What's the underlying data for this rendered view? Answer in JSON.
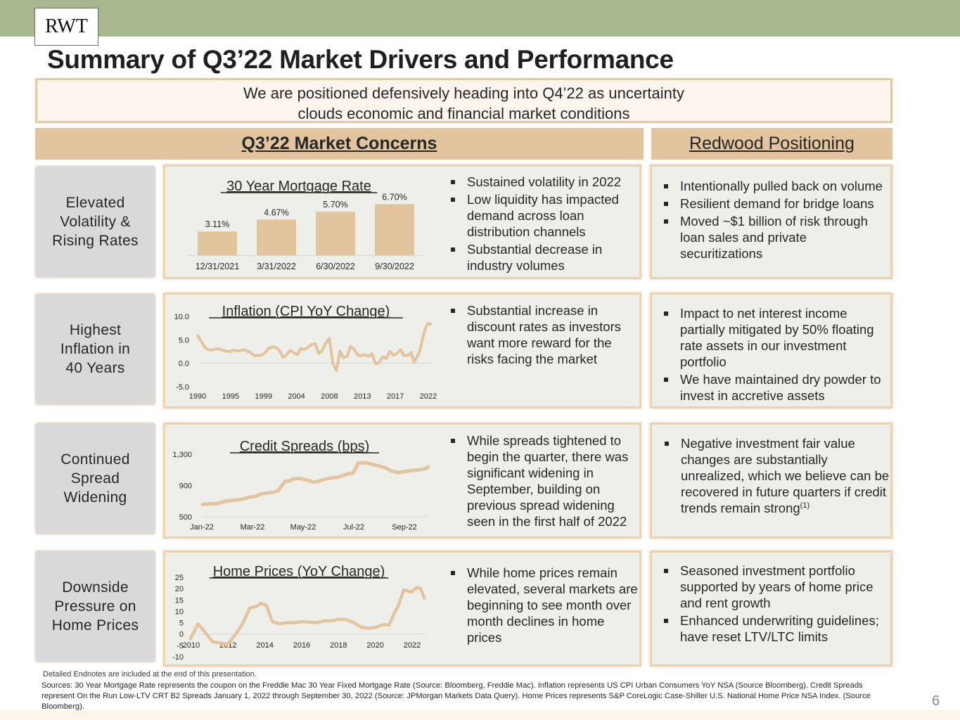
{
  "header": {
    "logo": "RWT",
    "title": "Summary of Q3’22 Market Drivers and Performance",
    "banner_line1": "We are positioned defensively heading into Q4’22 as uncertainty",
    "banner_line2": "clouds economic and financial market conditions",
    "concerns_heading": "Q3’22 Market Concerns",
    "positioning_heading": "Redwood Positioning"
  },
  "colors": {
    "top_bar": "#a9b78f",
    "header_fill": "#e2c49e",
    "panel_border": "#ecd2b0",
    "panel_fill": "#efefea",
    "label_fill": "#d9d9d9",
    "series": "#e2c49e"
  },
  "rows": [
    {
      "label_lines": [
        "Elevated",
        "Volatility &",
        "Rising Rates"
      ],
      "concerns": [
        "Sustained volatility in 2022",
        "Low liquidity has impacted demand across loan distribution channels",
        "Substantial decrease in industry volumes"
      ],
      "positioning": [
        "Intentionally pulled back on volume",
        "Resilient demand for bridge loans",
        "Moved ~$1 billion of risk through loan sales and private securitizations"
      ]
    },
    {
      "label_lines": [
        "Highest",
        "Inflation in",
        "40 Years"
      ],
      "concerns": [
        "Substantial increase in discount rates as investors want more reward for the risks facing the market"
      ],
      "positioning": [
        "Impact to net interest income partially mitigated by 50% floating rate assets in our investment portfolio",
        "We have maintained dry powder to invest in accretive assets"
      ]
    },
    {
      "label_lines": [
        "Continued",
        "Spread",
        "Widening"
      ],
      "concerns": [
        "While spreads tightened to begin the quarter, there was significant widening in September, building on previous spread widening seen in the first half of 2022"
      ],
      "positioning": [
        "Negative investment fair value changes are substantially unrealized, which we believe can be recovered in future quarters if credit trends remain strong"
      ],
      "positioning_footnote": "(1)"
    },
    {
      "label_lines": [
        "Downside",
        "Pressure on",
        "Home Prices"
      ],
      "concerns": [
        "While home prices remain elevated, several markets are beginning to see month over month declines in home prices"
      ],
      "positioning": [
        "Seasoned investment portfolio supported by years of home price and rent growth",
        "Enhanced underwriting guidelines; have reset LTV/LTC limits"
      ]
    }
  ],
  "chart_data": [
    {
      "type": "bar",
      "title": "30 Year Mortgage Rate",
      "categories": [
        "12/31/2021",
        "3/31/2022",
        "6/30/2022",
        "9/30/2022"
      ],
      "values": [
        3.11,
        4.67,
        5.7,
        6.7
      ],
      "value_labels": [
        "3.11%",
        "4.67%",
        "5.70%",
        "6.70%"
      ],
      "ylim": [
        0,
        7
      ],
      "grid": false,
      "legend": "none"
    },
    {
      "type": "line",
      "title": "Inflation (CPI YoY Change)",
      "xlabel": "",
      "ylabel": "",
      "x_tick_labels": [
        "1990",
        "1995",
        "1999",
        "2004",
        "2008",
        "2013",
        "2017",
        "2022"
      ],
      "y_tick_labels": [
        "10.0",
        "5.0",
        "0.0",
        "-5.0"
      ],
      "xlim": [
        1990,
        2022.8
      ],
      "ylim": [
        -5,
        10
      ],
      "series": [
        {
          "name": "CPI YoY",
          "x": [
            1990.0,
            1990.5,
            1991.0,
            1991.5,
            1992.0,
            1992.5,
            1993.0,
            1993.5,
            1994.0,
            1994.5,
            1995.0,
            1995.5,
            1996.0,
            1996.5,
            1997.0,
            1997.5,
            1998.0,
            1998.5,
            1999.0,
            1999.5,
            2000.0,
            2000.5,
            2001.0,
            2001.5,
            2002.0,
            2002.5,
            2003.0,
            2003.5,
            2004.0,
            2004.5,
            2005.0,
            2005.5,
            2006.0,
            2006.5,
            2007.0,
            2007.5,
            2008.0,
            2008.5,
            2009.0,
            2009.5,
            2010.0,
            2010.5,
            2011.0,
            2011.5,
            2012.0,
            2012.5,
            2013.0,
            2013.5,
            2014.0,
            2014.5,
            2015.0,
            2015.5,
            2016.0,
            2016.5,
            2017.0,
            2017.5,
            2018.0,
            2018.5,
            2019.0,
            2019.5,
            2020.0,
            2020.4,
            2020.8,
            2021.2,
            2021.6,
            2022.0,
            2022.4,
            2022.7
          ],
          "y": [
            5.9,
            4.7,
            3.4,
            2.9,
            2.8,
            3.0,
            3.1,
            2.8,
            2.6,
            2.5,
            2.8,
            2.7,
            2.7,
            2.9,
            2.6,
            2.2,
            1.6,
            1.7,
            1.7,
            2.3,
            3.2,
            3.5,
            3.4,
            2.7,
            1.3,
            1.8,
            2.8,
            2.2,
            1.9,
            3.1,
            3.0,
            3.4,
            4.0,
            4.2,
            2.1,
            2.7,
            4.3,
            5.3,
            0.0,
            -1.6,
            2.6,
            1.2,
            1.5,
            3.6,
            2.9,
            1.7,
            1.6,
            1.8,
            1.5,
            2.0,
            -0.1,
            0.1,
            1.4,
            1.0,
            2.5,
            1.7,
            2.1,
            2.9,
            1.6,
            1.7,
            2.3,
            0.2,
            1.3,
            2.6,
            5.3,
            7.5,
            8.6,
            8.3
          ]
        }
      ],
      "grid": false,
      "legend": "none"
    },
    {
      "type": "line",
      "title": "Credit Spreads (bps)",
      "x_tick_labels": [
        "Jan-22",
        "Mar-22",
        "May-22",
        "Jul-22",
        "Sep-22"
      ],
      "y_tick_labels": [
        "1,300",
        "900",
        "500"
      ],
      "xlim": [
        0,
        9
      ],
      "ylim": [
        500,
        1300
      ],
      "series": [
        {
          "name": "On the Run Low-LTV CRT B2 Spreads",
          "x": [
            0.0,
            0.3,
            0.6,
            0.8,
            1.0,
            1.2,
            1.5,
            1.7,
            1.9,
            2.1,
            2.3,
            2.5,
            2.8,
            3.0,
            3.3,
            3.5,
            3.6,
            3.9,
            4.1,
            4.4,
            4.6,
            4.8,
            5.0,
            5.2,
            5.4,
            5.6,
            5.8,
            6.0,
            6.2,
            6.4,
            6.6,
            6.9,
            7.1,
            7.3,
            7.5,
            7.8,
            8.0,
            8.3,
            8.6,
            8.9,
            9.0
          ],
          "y": [
            660,
            665,
            670,
            690,
            705,
            710,
            720,
            735,
            755,
            760,
            790,
            800,
            815,
            830,
            955,
            960,
            985,
            990,
            975,
            945,
            950,
            975,
            990,
            1000,
            1005,
            1030,
            1050,
            1055,
            1185,
            1190,
            1185,
            1160,
            1145,
            1125,
            1090,
            1065,
            1075,
            1090,
            1100,
            1115,
            1140
          ]
        }
      ],
      "grid": false,
      "legend": "none"
    },
    {
      "type": "line",
      "title": "Home Prices (YoY Change)",
      "x_tick_labels": [
        "2010",
        "2012",
        "2014",
        "2016",
        "2018",
        "2020",
        "2022"
      ],
      "y_tick_labels": [
        "25",
        "20",
        "15",
        "10",
        "5",
        "0",
        "-5",
        "-10"
      ],
      "xlim": [
        2010,
        2022.7
      ],
      "ylim": [
        -10,
        25
      ],
      "series": [
        {
          "name": "S&P CoreLogic Case-Shiller U.S. National HPI YoY",
          "x": [
            2010.0,
            2010.4,
            2010.8,
            2011.2,
            2011.6,
            2012.0,
            2012.4,
            2012.8,
            2013.2,
            2013.5,
            2013.8,
            2014.1,
            2014.4,
            2014.8,
            2015.2,
            2015.6,
            2016.0,
            2016.4,
            2016.8,
            2017.2,
            2017.6,
            2018.0,
            2018.4,
            2018.8,
            2019.2,
            2019.6,
            2020.0,
            2020.4,
            2020.7,
            2021.0,
            2021.2,
            2021.5,
            2021.9,
            2022.2,
            2022.4,
            2022.6
          ],
          "y": [
            -2.0,
            4.5,
            0.5,
            -3.5,
            -4.0,
            -4.5,
            -0.5,
            4.5,
            11.5,
            12.0,
            13.5,
            12.5,
            5.5,
            4.5,
            5.0,
            5.0,
            5.5,
            5.2,
            5.0,
            5.8,
            5.8,
            6.5,
            6.3,
            5.0,
            3.0,
            2.5,
            3.0,
            4.2,
            4.0,
            9.5,
            12.5,
            19.5,
            18.5,
            20.5,
            20.0,
            15.8
          ]
        }
      ],
      "grid": false,
      "legend": "none"
    }
  ],
  "footer": {
    "endnote": "Detailed Endnotes are included at the end of this presentation.",
    "sources": "Sources: 30 Year Mortgage Rate represents the coupon on the Freddie Mac 30 Year Fixed Mortgage Rate (Source: Bloomberg, Freddie Mac). Inflation represents US CPI Urban Consumers YoY NSA (Source Bloomberg). Credit Spreads represent On the Run Low-LTV CRT B2 Spreads January 1, 2022 through September 30, 2022 (Source: JPMorgan Markets Data Query). Home Prices represents S&P CoreLogic Case-Shiller U.S. National Home Price NSA Index. (Source Bloomberg).",
    "page_number": "6"
  }
}
